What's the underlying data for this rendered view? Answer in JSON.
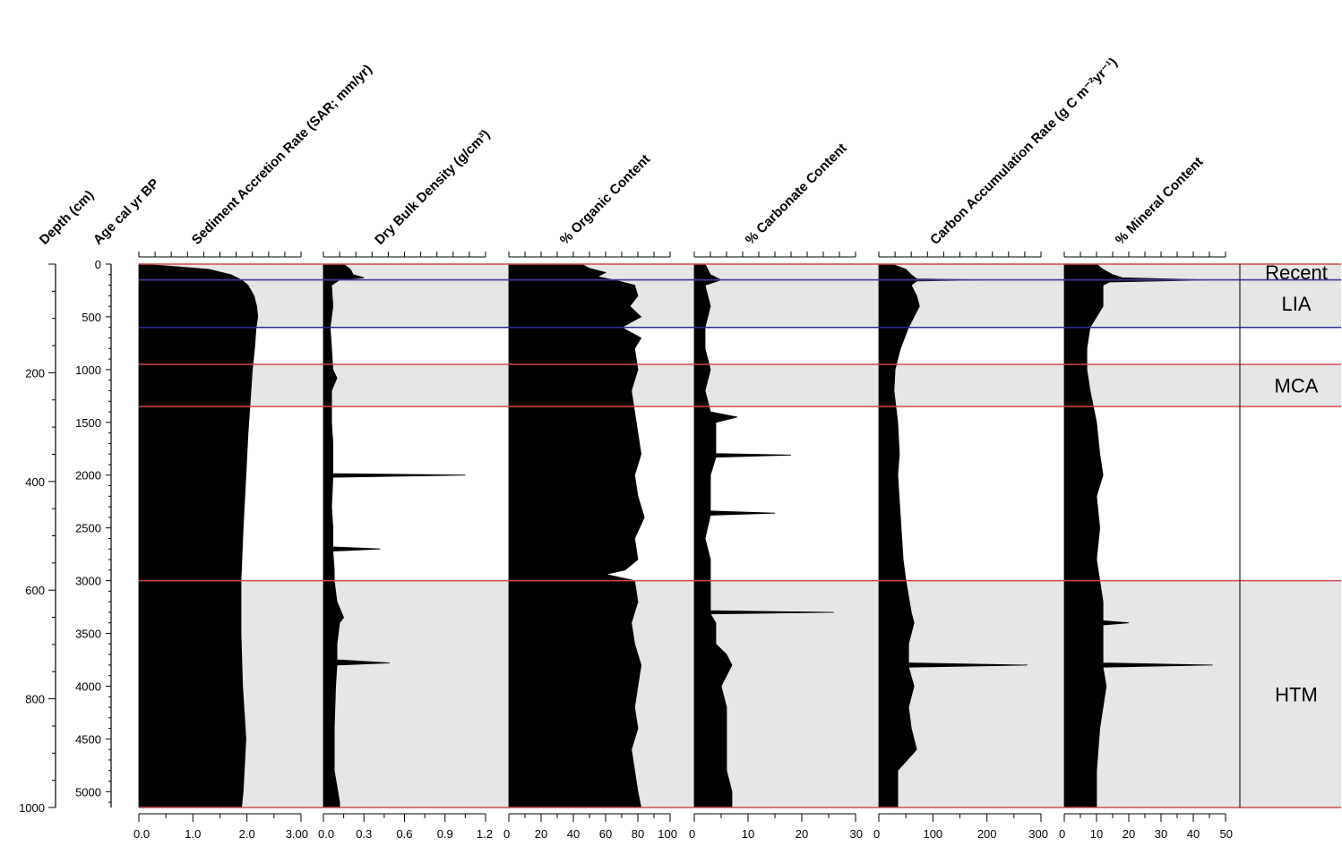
{
  "chart_data": {
    "type": "area",
    "layout": "stratigraphic-panels",
    "depth_axis": {
      "label": "Depth (cm)",
      "ticks": [
        200,
        400,
        600,
        800,
        1000
      ],
      "range": [
        0,
        1000
      ]
    },
    "age_axis": {
      "label": "Age cal yr BP",
      "ticks": [
        0,
        500,
        1000,
        1500,
        2000,
        2500,
        3000,
        3500,
        4000,
        4500,
        5000
      ],
      "range": [
        0,
        5150
      ]
    },
    "zones": [
      {
        "label": "Recent",
        "from": 0,
        "to": 150,
        "shaded": true
      },
      {
        "label": "LIA",
        "from": 150,
        "to": 600,
        "shaded": true
      },
      {
        "label": "",
        "from": 600,
        "to": 950,
        "shaded": false
      },
      {
        "label": "MCA",
        "from": 950,
        "to": 1350,
        "shaded": true
      },
      {
        "label": "",
        "from": 1350,
        "to": 3000,
        "shaded": false
      },
      {
        "label": "HTM",
        "from": 3000,
        "to": 5150,
        "shaded": true
      }
    ],
    "boundaries": [
      {
        "age": 0,
        "color": "#d24848"
      },
      {
        "age": 150,
        "color": "#d24848"
      },
      {
        "age": 150,
        "color": "#3a3aa8"
      },
      {
        "age": 600,
        "color": "#2a2a9a"
      },
      {
        "age": 950,
        "color": "#d24848"
      },
      {
        "age": 1350,
        "color": "#d24848"
      },
      {
        "age": 3000,
        "color": "#d24848"
      },
      {
        "age": 5150,
        "color": "#d24848"
      }
    ],
    "series": [
      {
        "name": "Sediment Accretion Rate (SAR; mm/yr)",
        "xlim": [
          0,
          3.0
        ],
        "ticks": [
          "0.0",
          "1.0",
          "2.0",
          "3.00"
        ],
        "age": [
          0,
          20,
          50,
          100,
          150,
          200,
          300,
          400,
          500,
          600,
          800,
          1000,
          1300,
          1600,
          2000,
          2500,
          3000,
          3500,
          4000,
          4500,
          5000,
          5150
        ],
        "values": [
          0.05,
          0.6,
          1.3,
          1.7,
          1.9,
          2.02,
          2.13,
          2.18,
          2.2,
          2.17,
          2.14,
          2.1,
          2.06,
          2.02,
          1.98,
          1.93,
          1.89,
          1.89,
          1.92,
          1.98,
          1.93,
          1.9
        ]
      },
      {
        "name": "Dry Bulk Density (g/cm³)",
        "xlim": [
          0,
          1.2
        ],
        "ticks": [
          "0.0",
          "0.3",
          "0.6",
          "0.9",
          "1.2"
        ],
        "age": [
          0,
          50,
          100,
          130,
          150,
          200,
          400,
          600,
          800,
          1000,
          1080,
          1200,
          1500,
          1700,
          1985,
          2000,
          2020,
          2300,
          2500,
          2680,
          2700,
          2720,
          2900,
          3000,
          3200,
          3350,
          3400,
          3600,
          3750,
          3780,
          3800,
          4000,
          4400,
          4800,
          5100,
          5150
        ],
        "values": [
          0.15,
          0.2,
          0.22,
          0.3,
          0.12,
          0.06,
          0.07,
          0.05,
          0.06,
          0.07,
          0.1,
          0.06,
          0.06,
          0.07,
          0.07,
          1.05,
          0.07,
          0.06,
          0.07,
          0.07,
          0.42,
          0.07,
          0.08,
          0.08,
          0.1,
          0.15,
          0.12,
          0.1,
          0.1,
          0.49,
          0.1,
          0.09,
          0.08,
          0.08,
          0.12,
          0.12
        ]
      },
      {
        "name": "% Organic Content",
        "xlim": [
          0,
          100
        ],
        "ticks": [
          "0",
          "20",
          "40",
          "60",
          "80",
          "100"
        ],
        "age": [
          0,
          40,
          80,
          120,
          150,
          200,
          300,
          400,
          500,
          600,
          700,
          800,
          1000,
          1200,
          1400,
          1600,
          1800,
          2000,
          2200,
          2400,
          2600,
          2800,
          2900,
          2940,
          3000,
          3200,
          3400,
          3600,
          3800,
          4000,
          4200,
          4400,
          4600,
          4800,
          5000,
          5150
        ],
        "values": [
          45,
          50,
          60,
          55,
          65,
          78,
          80,
          75,
          82,
          70,
          82,
          78,
          80,
          76,
          78,
          80,
          82,
          78,
          80,
          84,
          78,
          80,
          72,
          60,
          78,
          80,
          76,
          78,
          82,
          80,
          78,
          80,
          76,
          78,
          80,
          82
        ]
      },
      {
        "name": "% Carbonate Content",
        "xlim": [
          0,
          30
        ],
        "ticks": [
          "0",
          "10",
          "20",
          "30"
        ],
        "age": [
          0,
          100,
          150,
          200,
          400,
          600,
          800,
          1000,
          1200,
          1400,
          1450,
          1500,
          1700,
          1795,
          1810,
          1830,
          2000,
          2200,
          2340,
          2360,
          2380,
          2600,
          2800,
          3000,
          3200,
          3285,
          3300,
          3315,
          3400,
          3600,
          3700,
          3800,
          4000,
          4200,
          4400,
          4600,
          4800,
          5000,
          5150
        ],
        "values": [
          2,
          3,
          5,
          2,
          3,
          2,
          2,
          3,
          2,
          3,
          8,
          4,
          4,
          4,
          18,
          4,
          3,
          3,
          3,
          15,
          3,
          2,
          3,
          3,
          3,
          3,
          26,
          3,
          4,
          4,
          6,
          7,
          5,
          6,
          6,
          6,
          6,
          7,
          7
        ]
      },
      {
        "name": "Carbon Accumulation Rate (g C m⁻²yr⁻¹)",
        "xlim": [
          0,
          300
        ],
        "ticks": [
          "0",
          "100",
          "200",
          "300"
        ],
        "age": [
          0,
          50,
          100,
          140,
          150,
          160,
          200,
          300,
          400,
          500,
          600,
          800,
          1000,
          1200,
          1500,
          1800,
          2000,
          2400,
          2800,
          3000,
          3300,
          3400,
          3600,
          3780,
          3800,
          3820,
          4000,
          4200,
          4400,
          4600,
          4800,
          5000,
          5150
        ],
        "values": [
          25,
          50,
          60,
          70,
          190,
          70,
          60,
          70,
          75,
          65,
          55,
          40,
          30,
          28,
          35,
          38,
          35,
          40,
          45,
          50,
          60,
          65,
          55,
          55,
          275,
          55,
          65,
          55,
          60,
          70,
          35,
          35,
          35
        ]
      },
      {
        "name": "% Mineral Content",
        "xlim": [
          0,
          50
        ],
        "ticks": [
          "0",
          "10",
          "20",
          "30",
          "40",
          "50"
        ],
        "age": [
          0,
          50,
          100,
          130,
          150,
          170,
          200,
          400,
          600,
          800,
          1000,
          1200,
          1500,
          1800,
          2000,
          2200,
          2500,
          2800,
          3000,
          3200,
          3380,
          3400,
          3420,
          3600,
          3780,
          3800,
          3820,
          4000,
          4400,
          4800,
          5100,
          5150
        ],
        "values": [
          10,
          12,
          15,
          18,
          45,
          14,
          12,
          12,
          8,
          7,
          7,
          8,
          10,
          11,
          12,
          10,
          11,
          10,
          11,
          12,
          12,
          20,
          12,
          12,
          12,
          46,
          12,
          13,
          11,
          10,
          10,
          10
        ]
      }
    ]
  }
}
